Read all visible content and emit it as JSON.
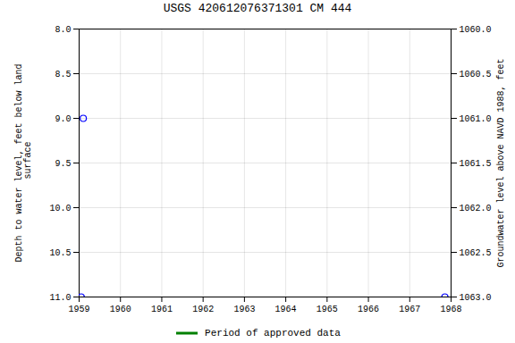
{
  "chart_data": {
    "type": "scatter",
    "title": "USGS 420612076371301 CM 444",
    "ylabel": "Depth to water level, feet below land\n surface",
    "y2label": "Groundwater level above NAVD 1988, feet",
    "xlim": [
      1959,
      1968
    ],
    "xticks": [
      1959,
      1960,
      1961,
      1962,
      1963,
      1964,
      1965,
      1966,
      1967,
      1968
    ],
    "ylim": [
      11.0,
      8.0
    ],
    "yticks": [
      {
        "value": 8.0,
        "label": "8.0"
      },
      {
        "value": 8.5,
        "label": "8.5"
      },
      {
        "value": 9.0,
        "label": "9.0"
      },
      {
        "value": 9.5,
        "label": "9.5"
      },
      {
        "value": 10.0,
        "label": "10.0"
      },
      {
        "value": 10.5,
        "label": "10.5"
      },
      {
        "value": 11.0,
        "label": "11.0"
      }
    ],
    "y2lim": [
      1063.0,
      1060.0
    ],
    "y2ticks": [
      {
        "value": 1063.0,
        "label": "1063.0"
      },
      {
        "value": 1062.5,
        "label": "1062.5"
      },
      {
        "value": 1062.0,
        "label": "1062.0"
      },
      {
        "value": 1061.5,
        "label": "1061.5"
      },
      {
        "value": 1061.0,
        "label": "1061.0"
      },
      {
        "value": 1060.5,
        "label": "1060.5"
      },
      {
        "value": 1060.0,
        "label": "1060.0"
      }
    ],
    "grid": true,
    "legend": "bottom",
    "series": [
      {
        "color": "#0000ff",
        "marker": "open circle",
        "x": [
          1959.1,
          1959.05,
          1967.85
        ],
        "values": [
          9.0,
          11.0,
          11.0
        ]
      },
      {
        "name": "Period of approved data",
        "type": "line",
        "color": "#008000",
        "x": [],
        "values": []
      }
    ]
  }
}
